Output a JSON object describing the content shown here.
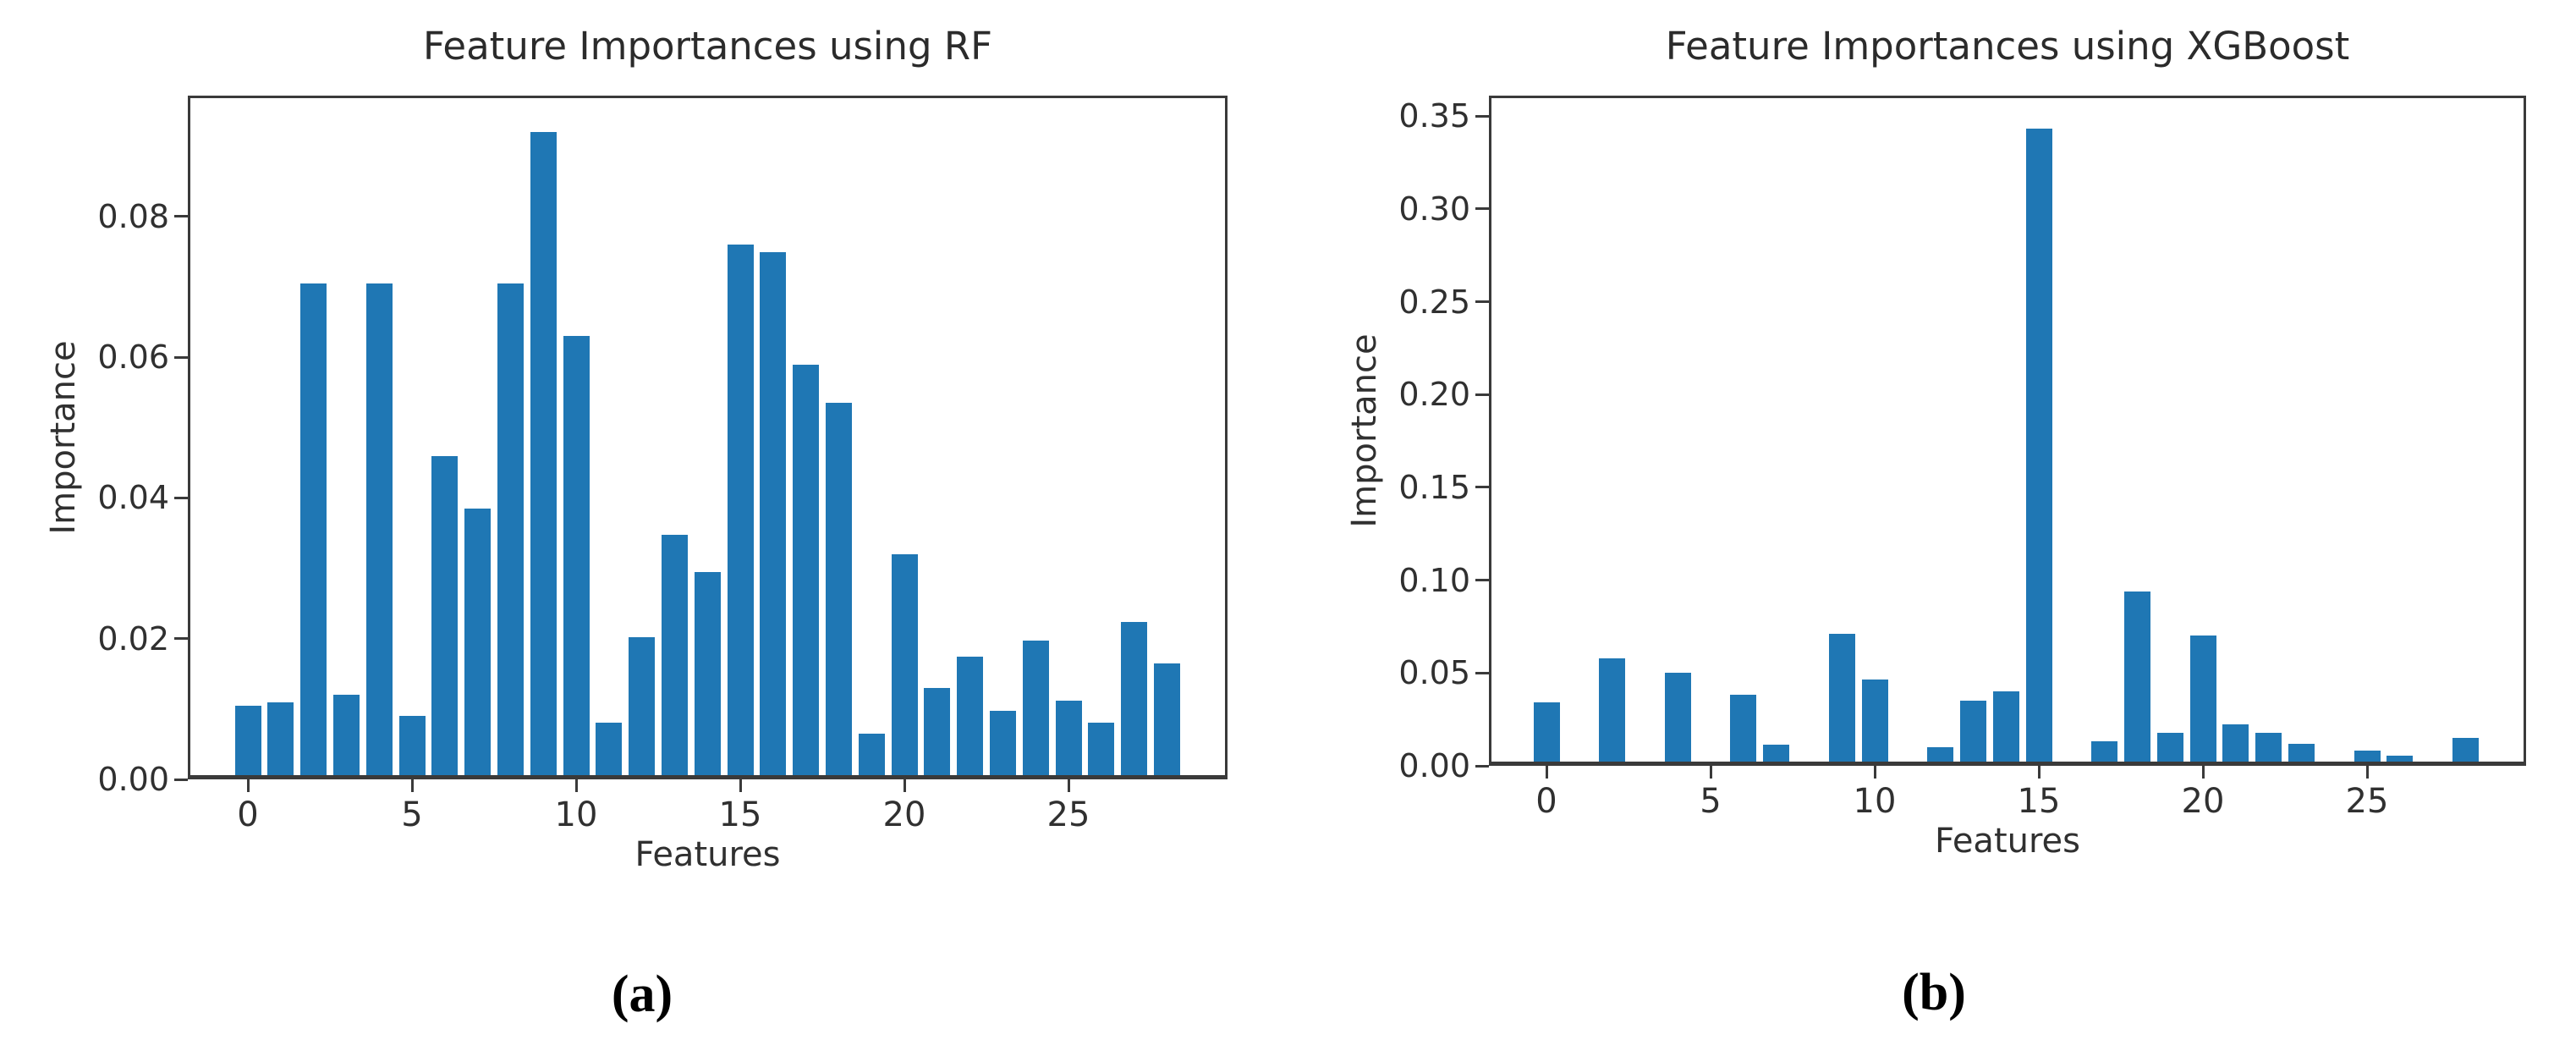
{
  "colors": {
    "bar": "#1f77b4",
    "axis": "#3a3a3a",
    "text": "#303030",
    "background": "#ffffff"
  },
  "chart_data": [
    {
      "id": "rf",
      "type": "bar",
      "title": "Feature Importances using RF",
      "xlabel": "Features",
      "ylabel": "Importance",
      "panel_label": "(a)",
      "grid": false,
      "legend": "none",
      "categories": [
        0,
        1,
        2,
        3,
        4,
        5,
        6,
        7,
        8,
        9,
        10,
        11,
        12,
        13,
        14,
        15,
        16,
        17,
        18,
        19,
        20,
        21,
        22,
        23,
        24,
        25,
        26,
        27,
        28
      ],
      "values": [
        0.0105,
        0.011,
        0.0705,
        0.012,
        0.0705,
        0.009,
        0.046,
        0.0385,
        0.0705,
        0.092,
        0.063,
        0.008,
        0.0202,
        0.0348,
        0.0295,
        0.076,
        0.075,
        0.059,
        0.0535,
        0.0065,
        0.032,
        0.013,
        0.0174,
        0.0098,
        0.0197,
        0.0112,
        0.008,
        0.0224,
        0.0165
      ],
      "ylim": [
        0,
        0.0972
      ],
      "yticks": [
        0.0,
        0.02,
        0.04,
        0.06,
        0.08
      ],
      "ytick_labels": [
        "0.00",
        "0.02",
        "0.04",
        "0.06",
        "0.08"
      ],
      "xticks": [
        0,
        5,
        10,
        15,
        20,
        25
      ],
      "xtick_labels": [
        "0",
        "5",
        "10",
        "15",
        "20",
        "25"
      ]
    },
    {
      "id": "xgboost",
      "type": "bar",
      "title": "Feature Importances using XGBoost",
      "xlabel": "Features",
      "ylabel": "Importance",
      "panel_label": "(b)",
      "grid": false,
      "legend": "none",
      "categories": [
        0,
        1,
        2,
        3,
        4,
        5,
        6,
        7,
        8,
        9,
        10,
        11,
        12,
        13,
        14,
        15,
        16,
        17,
        18,
        19,
        20,
        21,
        22,
        23,
        24,
        25,
        26,
        27,
        28
      ],
      "values": [
        0.034,
        0,
        0.058,
        0,
        0.05,
        0,
        0.0385,
        0.0115,
        0,
        0.0712,
        0.0465,
        0,
        0.01,
        0.035,
        0.04,
        0.343,
        0,
        0.0132,
        0.094,
        0.018,
        0.07,
        0.0224,
        0.018,
        0.0118,
        0,
        0.0082,
        0.0055,
        0.0023,
        0.015
      ],
      "ylim": [
        0,
        0.361
      ],
      "yticks": [
        0.0,
        0.05,
        0.1,
        0.15,
        0.2,
        0.25,
        0.3,
        0.35
      ],
      "ytick_labels": [
        "0.00",
        "0.05",
        "0.10",
        "0.15",
        "0.20",
        "0.25",
        "0.30",
        "0.35"
      ],
      "xticks": [
        0,
        5,
        10,
        15,
        20,
        25
      ],
      "xtick_labels": [
        "0",
        "5",
        "10",
        "15",
        "20",
        "25"
      ]
    }
  ]
}
